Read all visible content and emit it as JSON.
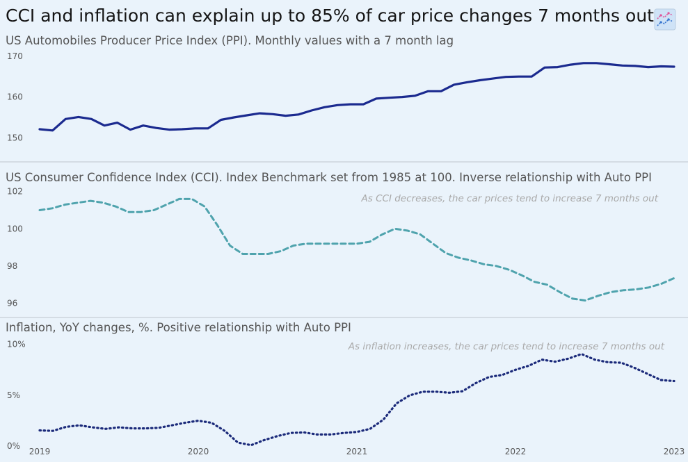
{
  "title": "CCI and inflation can explain up to 85% of car price changes 7 months out",
  "title_icon": "chart-increasing-emoji",
  "colors": {
    "background": "#eaf3fb",
    "ppi_line": "#1b2a8f",
    "cci_line": "#4fa3ad",
    "inflation_line": "#1b2a7a",
    "divider": "#cdd5dc",
    "annotation": "#a9a9a9"
  },
  "chart_data": [
    {
      "type": "line",
      "title": "US Automobiles Producer Price Index (PPI). Monthly values with a 7 month lag",
      "line_style": "solid",
      "x_start": "2019-01",
      "x_end": "2023-01",
      "x_tick_labels": [
        "2019",
        "2020",
        "2021",
        "2022",
        "2023"
      ],
      "y_ticks": [
        150,
        160,
        170
      ],
      "ylim": [
        147,
        172
      ],
      "series": [
        {
          "values": [
            152.1,
            151.8,
            154.6,
            155.1,
            154.6,
            153.0,
            153.7,
            152.0,
            153.0,
            152.4,
            152.0,
            152.1,
            152.3,
            152.3,
            154.4,
            155.0,
            155.5,
            156.0,
            155.8,
            155.4,
            155.7,
            156.7,
            157.5,
            158.0,
            158.2,
            158.2,
            159.6,
            159.8,
            160.0,
            160.3,
            161.4,
            161.4,
            163.0,
            163.6,
            164.1,
            164.5,
            164.9,
            165.0,
            165.0,
            167.2,
            167.3,
            167.9,
            168.3,
            168.3,
            168.0,
            167.7,
            167.6,
            167.3,
            167.5,
            167.4
          ]
        }
      ]
    },
    {
      "type": "line",
      "title": "US Consumer Confidence Index (CCI). Index Benchmark set from 1985 at 100. Inverse relationship with Auto PPI",
      "annotation": "As CCI decreases, the car prices tend to increase 7 months out",
      "line_style": "dashed",
      "x_start": "2019-01",
      "x_end": "2023-01",
      "y_ticks": [
        96,
        98,
        100,
        102
      ],
      "ylim": [
        95.2,
        102.4
      ],
      "series": [
        {
          "values": [
            101.0,
            101.1,
            101.3,
            101.4,
            101.5,
            101.4,
            101.2,
            100.9,
            100.9,
            101.0,
            101.3,
            101.6,
            101.6,
            101.2,
            100.2,
            99.1,
            98.65,
            98.65,
            98.65,
            98.8,
            99.1,
            99.2,
            99.2,
            99.2,
            99.2,
            99.2,
            99.3,
            99.7,
            100.0,
            99.9,
            99.7,
            99.2,
            98.7,
            98.45,
            98.3,
            98.1,
            98.0,
            97.8,
            97.5,
            97.15,
            97.0,
            96.6,
            96.25,
            96.15,
            96.4,
            96.6,
            96.7,
            96.75,
            96.85,
            97.05,
            97.35
          ]
        }
      ]
    },
    {
      "type": "line",
      "title": "Inflation, YoY changes, %. Positive relationship with Auto PPI",
      "annotation": "As inflation increases, the car prices tend to increase 7 months out",
      "line_style": "dotted",
      "x_start": "2019-01",
      "x_end": "2023-01",
      "y_ticks": [
        0,
        5,
        10
      ],
      "y_tick_labels": [
        "0%",
        "5%",
        "10%"
      ],
      "ylim": [
        -0.6,
        10.8
      ],
      "series": [
        {
          "values": [
            1.55,
            1.5,
            1.9,
            2.05,
            1.85,
            1.7,
            1.85,
            1.75,
            1.75,
            1.8,
            2.05,
            2.3,
            2.5,
            2.3,
            1.5,
            0.35,
            0.1,
            0.6,
            1.0,
            1.3,
            1.35,
            1.15,
            1.15,
            1.3,
            1.4,
            1.7,
            2.6,
            4.2,
            5.0,
            5.35,
            5.35,
            5.25,
            5.4,
            6.2,
            6.8,
            7.0,
            7.5,
            7.9,
            8.5,
            8.3,
            8.6,
            9.05,
            8.5,
            8.25,
            8.2,
            7.7,
            7.1,
            6.5,
            6.4
          ]
        }
      ]
    }
  ]
}
